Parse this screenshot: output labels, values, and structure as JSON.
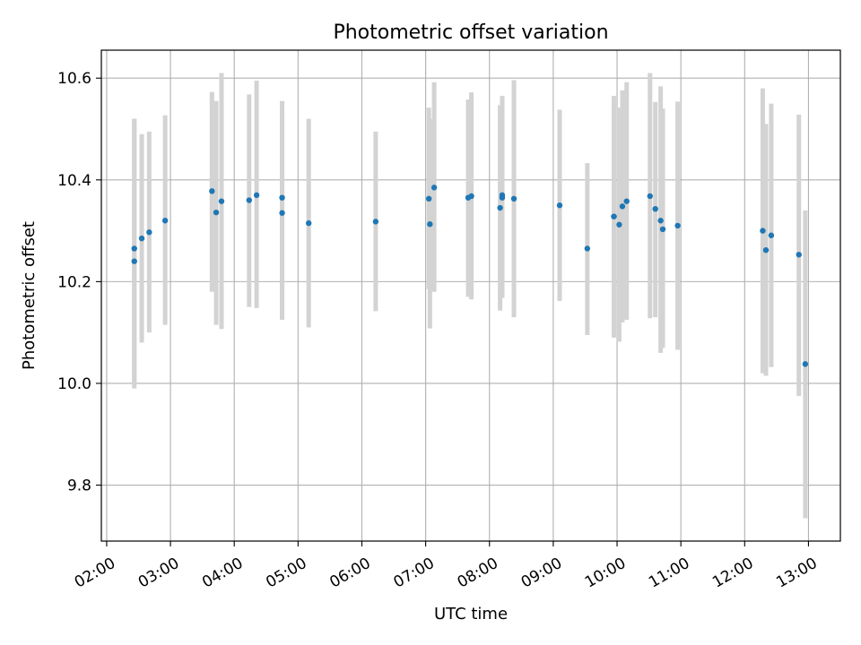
{
  "chart_data": {
    "type": "scatter",
    "title": "Photometric offset variation",
    "xlabel": "UTC time",
    "ylabel": "Photometric offset",
    "xlim": [
      "01:55",
      "13:30"
    ],
    "ylim": [
      9.69,
      10.655
    ],
    "x_ticks": [
      "02:00",
      "03:00",
      "04:00",
      "05:00",
      "06:00",
      "07:00",
      "08:00",
      "09:00",
      "10:00",
      "11:00",
      "12:00",
      "13:00"
    ],
    "y_ticks": [
      9.8,
      10.0,
      10.2,
      10.4,
      10.6
    ],
    "grid": true,
    "point_color": "#1f77b4",
    "errorbar_color": "#d3d3d3",
    "points": [
      {
        "time": "02:26",
        "value": 10.24,
        "low": 9.99,
        "high": 10.52
      },
      {
        "time": "02:26",
        "value": 10.265,
        "low": 10.0,
        "high": 10.52
      },
      {
        "time": "02:33",
        "value": 10.285,
        "low": 10.08,
        "high": 10.49
      },
      {
        "time": "02:40",
        "value": 10.297,
        "low": 10.1,
        "high": 10.495
      },
      {
        "time": "02:55",
        "value": 10.32,
        "low": 10.115,
        "high": 10.527
      },
      {
        "time": "03:39",
        "value": 10.378,
        "low": 10.18,
        "high": 10.573
      },
      {
        "time": "03:43",
        "value": 10.336,
        "low": 10.115,
        "high": 10.555
      },
      {
        "time": "03:48",
        "value": 10.358,
        "low": 10.107,
        "high": 10.61
      },
      {
        "time": "04:14",
        "value": 10.36,
        "low": 10.15,
        "high": 10.568
      },
      {
        "time": "04:21",
        "value": 10.37,
        "low": 10.148,
        "high": 10.595
      },
      {
        "time": "04:45",
        "value": 10.365,
        "low": 10.13,
        "high": 10.555
      },
      {
        "time": "04:45",
        "value": 10.335,
        "low": 10.125,
        "high": 10.545
      },
      {
        "time": "05:10",
        "value": 10.315,
        "low": 10.11,
        "high": 10.52
      },
      {
        "time": "06:13",
        "value": 10.318,
        "low": 10.142,
        "high": 10.495
      },
      {
        "time": "07:03",
        "value": 10.363,
        "low": 10.185,
        "high": 10.542
      },
      {
        "time": "07:04",
        "value": 10.313,
        "low": 10.108,
        "high": 10.52
      },
      {
        "time": "07:08",
        "value": 10.385,
        "low": 10.18,
        "high": 10.592
      },
      {
        "time": "07:40",
        "value": 10.365,
        "low": 10.17,
        "high": 10.558
      },
      {
        "time": "07:43",
        "value": 10.368,
        "low": 10.165,
        "high": 10.572
      },
      {
        "time": "08:10",
        "value": 10.345,
        "low": 10.143,
        "high": 10.547
      },
      {
        "time": "08:12",
        "value": 10.37,
        "low": 10.17,
        "high": 10.565
      },
      {
        "time": "08:12",
        "value": 10.365,
        "low": 10.168,
        "high": 10.56
      },
      {
        "time": "08:23",
        "value": 10.363,
        "low": 10.13,
        "high": 10.596
      },
      {
        "time": "09:06",
        "value": 10.35,
        "low": 10.162,
        "high": 10.538
      },
      {
        "time": "09:32",
        "value": 10.265,
        "low": 10.095,
        "high": 10.433
      },
      {
        "time": "09:57",
        "value": 10.328,
        "low": 10.09,
        "high": 10.565
      },
      {
        "time": "10:02",
        "value": 10.312,
        "low": 10.082,
        "high": 10.542
      },
      {
        "time": "10:05",
        "value": 10.348,
        "low": 10.12,
        "high": 10.576
      },
      {
        "time": "10:09",
        "value": 10.358,
        "low": 10.125,
        "high": 10.592
      },
      {
        "time": "10:31",
        "value": 10.368,
        "low": 10.128,
        "high": 10.61
      },
      {
        "time": "10:36",
        "value": 10.343,
        "low": 10.13,
        "high": 10.553
      },
      {
        "time": "10:41",
        "value": 10.32,
        "low": 10.06,
        "high": 10.584
      },
      {
        "time": "10:43",
        "value": 10.303,
        "low": 10.07,
        "high": 10.54
      },
      {
        "time": "10:57",
        "value": 10.31,
        "low": 10.066,
        "high": 10.554
      },
      {
        "time": "12:17",
        "value": 10.3,
        "low": 10.02,
        "high": 10.58
      },
      {
        "time": "12:20",
        "value": 10.262,
        "low": 10.015,
        "high": 10.51
      },
      {
        "time": "12:25",
        "value": 10.291,
        "low": 10.032,
        "high": 10.55
      },
      {
        "time": "12:51",
        "value": 10.253,
        "low": 9.975,
        "high": 10.528
      },
      {
        "time": "12:57",
        "value": 10.038,
        "low": 9.735,
        "high": 10.34
      }
    ]
  }
}
